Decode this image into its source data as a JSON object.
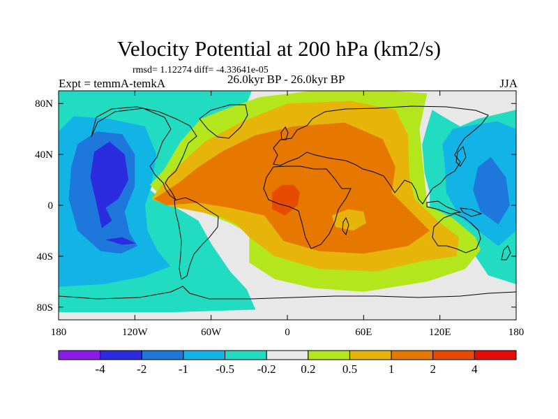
{
  "chart_data": {
    "type": "heatmap",
    "title": "Velocity Potential at 200 hPa (km2/s)",
    "stats": "rmsd= 1.12274 diff= -4.33641e-05",
    "left_label": "Expt = temmA-temkA",
    "center_label": "26.0kyr BP - 26.0kyr BP",
    "right_label": "JJA",
    "x_axis": {
      "range": [
        -180,
        180
      ],
      "ticks": [
        -180,
        -120,
        -60,
        0,
        60,
        120,
        180
      ],
      "tick_labels": [
        "180",
        "120W",
        "60W",
        "0",
        "60E",
        "120E",
        "180"
      ]
    },
    "y_axis": {
      "range": [
        -90,
        90
      ],
      "ticks": [
        80,
        40,
        0,
        -40,
        -80
      ],
      "tick_labels": [
        "80N",
        "40N",
        "0",
        "40S",
        "80S"
      ]
    },
    "colorbar": {
      "levels": [
        "-4",
        "-2",
        "-1",
        "-0.5",
        "-0.2",
        "0.2",
        "0.5",
        "1",
        "2",
        "4"
      ],
      "colors": [
        "#8a1ee6",
        "#2b2be0",
        "#1e78dc",
        "#12b4e6",
        "#22dcc2",
        "#e8e8e8",
        "#b4e61e",
        "#e6b40a",
        "#e67800",
        "#e64b00",
        "#e60a0a"
      ]
    },
    "field_regions": [
      {
        "bin": 4,
        "lonlat": [
          [
            -180,
            -78
          ],
          [
            -180,
            90
          ],
          [
            -28,
            90
          ],
          [
            -40,
            60
          ],
          [
            -62,
            45
          ],
          [
            -90,
            30
          ],
          [
            -105,
            18
          ],
          [
            -108,
            12
          ],
          [
            -95,
            2
          ],
          [
            -82,
            -5
          ],
          [
            -70,
            -12
          ],
          [
            -60,
            -30
          ],
          [
            -45,
            -52
          ],
          [
            -32,
            -66
          ],
          [
            -25,
            -82
          ],
          [
            -90,
            -84
          ],
          [
            -180,
            -84
          ]
        ]
      },
      {
        "bin": 4,
        "lonlat": [
          [
            114,
            75
          ],
          [
            122,
            70
          ],
          [
            136,
            62
          ],
          [
            150,
            68
          ],
          [
            180,
            75
          ],
          [
            180,
            -62
          ],
          [
            158,
            -55
          ],
          [
            148,
            -40
          ],
          [
            132,
            -25
          ],
          [
            120,
            -12
          ],
          [
            112,
            -2
          ],
          [
            112,
            10
          ],
          [
            108,
            25
          ],
          [
            106,
            48
          ],
          [
            110,
            62
          ]
        ]
      },
      {
        "bin": 3,
        "lonlat": [
          [
            -180,
            58
          ],
          [
            -168,
            70
          ],
          [
            -140,
            68
          ],
          [
            -112,
            62
          ],
          [
            -103,
            40
          ],
          [
            -107,
            15
          ],
          [
            -112,
            0
          ],
          [
            -110,
            -20
          ],
          [
            -102,
            -36
          ],
          [
            -92,
            -48
          ],
          [
            -113,
            -56
          ],
          [
            -145,
            -62
          ],
          [
            -180,
            -64
          ]
        ]
      },
      {
        "bin": 3,
        "lonlat": [
          [
            130,
            60
          ],
          [
            145,
            63
          ],
          [
            165,
            66
          ],
          [
            180,
            60
          ],
          [
            180,
            -20
          ],
          [
            166,
            -32
          ],
          [
            150,
            -20
          ],
          [
            135,
            -8
          ],
          [
            125,
            10
          ],
          [
            124,
            30
          ],
          [
            122,
            48
          ]
        ]
      },
      {
        "bin": 2,
        "lonlat": [
          [
            -165,
            48
          ],
          [
            -150,
            58
          ],
          [
            -130,
            56
          ],
          [
            -120,
            40
          ],
          [
            -120,
            15
          ],
          [
            -128,
            -5
          ],
          [
            -124,
            -22
          ],
          [
            -118,
            -32
          ],
          [
            -131,
            -38
          ],
          [
            -147,
            -36
          ],
          [
            -165,
            -20
          ],
          [
            -172,
            5
          ],
          [
            -170,
            30
          ]
        ]
      },
      {
        "bin": 2,
        "lonlat": [
          [
            150,
            30
          ],
          [
            160,
            38
          ],
          [
            172,
            22
          ],
          [
            175,
            0
          ],
          [
            166,
            -15
          ],
          [
            152,
            -5
          ],
          [
            146,
            12
          ]
        ]
      },
      {
        "bin": 1,
        "lonlat": [
          [
            -152,
            42
          ],
          [
            -140,
            50
          ],
          [
            -128,
            40
          ],
          [
            -125,
            20
          ],
          [
            -133,
            5
          ],
          [
            -143,
            -2
          ],
          [
            -138,
            -12
          ],
          [
            -146,
            -18
          ],
          [
            -151,
            5
          ],
          [
            -155,
            22
          ]
        ]
      },
      {
        "bin": 1,
        "lonlat": [
          [
            -143,
            -27
          ],
          [
            -130,
            -25
          ],
          [
            -119,
            -30
          ],
          [
            -130,
            -31
          ]
        ]
      },
      {
        "bin": 6,
        "lonlat": [
          [
            -108,
            16
          ],
          [
            -97,
            28
          ],
          [
            -84,
            50
          ],
          [
            -68,
            68
          ],
          [
            -50,
            75
          ],
          [
            -22,
            85
          ],
          [
            20,
            90
          ],
          [
            80,
            90
          ],
          [
            110,
            88
          ],
          [
            104,
            60
          ],
          [
            108,
            20
          ],
          [
            110,
            0
          ],
          [
            130,
            -10
          ],
          [
            148,
            -25
          ],
          [
            152,
            -35
          ],
          [
            140,
            -50
          ],
          [
            110,
            -60
          ],
          [
            60,
            -68
          ],
          [
            20,
            -65
          ],
          [
            -10,
            -58
          ],
          [
            -30,
            -45
          ],
          [
            -30,
            -22
          ],
          [
            -45,
            -14
          ],
          [
            -70,
            -4
          ],
          [
            -82,
            -2
          ],
          [
            -95,
            3
          ]
        ]
      },
      {
        "bin": 7,
        "lonlat": [
          [
            -107,
            5
          ],
          [
            -92,
            25
          ],
          [
            -65,
            50
          ],
          [
            -35,
            66
          ],
          [
            0,
            80
          ],
          [
            50,
            82
          ],
          [
            85,
            75
          ],
          [
            95,
            55
          ],
          [
            96,
            22
          ],
          [
            100,
            5
          ],
          [
            118,
            -12
          ],
          [
            135,
            -25
          ],
          [
            133,
            -40
          ],
          [
            105,
            -44
          ],
          [
            70,
            -52
          ],
          [
            25,
            -50
          ],
          [
            -10,
            -40
          ],
          [
            -30,
            -25
          ],
          [
            -40,
            -15
          ],
          [
            -55,
            -8
          ],
          [
            -70,
            -5
          ],
          [
            -92,
            -1
          ]
        ]
      },
      {
        "bin": 8,
        "lonlat": [
          [
            -105,
            5
          ],
          [
            -85,
            18
          ],
          [
            -70,
            30
          ],
          [
            -50,
            43
          ],
          [
            -25,
            55
          ],
          [
            5,
            62
          ],
          [
            45,
            65
          ],
          [
            75,
            52
          ],
          [
            85,
            30
          ],
          [
            82,
            10
          ],
          [
            102,
            -10
          ],
          [
            112,
            -20
          ],
          [
            95,
            -32
          ],
          [
            60,
            -38
          ],
          [
            25,
            -36
          ],
          [
            -3,
            -28
          ],
          [
            -18,
            -8
          ],
          [
            -45,
            -2
          ],
          [
            -70,
            2
          ],
          [
            -95,
            0
          ]
        ]
      },
      {
        "bin": 7,
        "lonlat": [
          [
            35,
            -8
          ],
          [
            48,
            -3
          ],
          [
            60,
            -5
          ],
          [
            62,
            -14
          ],
          [
            52,
            -20
          ],
          [
            38,
            -17
          ]
        ]
      },
      {
        "bin": 9,
        "lonlat": [
          [
            -12,
            10
          ],
          [
            -4,
            16
          ],
          [
            5,
            16
          ],
          [
            10,
            10
          ],
          [
            8,
            0
          ],
          [
            -2,
            -8
          ],
          [
            -12,
            -3
          ]
        ]
      }
    ]
  }
}
